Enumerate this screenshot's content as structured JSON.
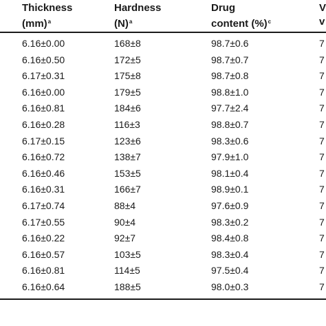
{
  "table": {
    "headers": [
      {
        "line1": "Thickness",
        "line2": "(mm)",
        "note": "a"
      },
      {
        "line1": "Hardness",
        "line2": "(N)",
        "note": "a"
      },
      {
        "line1": "Drug",
        "line2": "content (%)",
        "note": "c"
      },
      {
        "line1": "V",
        "line2": "v",
        "note": ""
      }
    ],
    "rows": [
      [
        "6.16±0.00",
        "168±8",
        "98.7±0.6",
        "7"
      ],
      [
        "6.16±0.50",
        "172±5",
        "98.7±0.7",
        "7"
      ],
      [
        "6.17±0.31",
        "175±8",
        "98.7±0.8",
        "7"
      ],
      [
        "6.16±0.00",
        "179±5",
        "98.8±1.0",
        "7"
      ],
      [
        "6.16±0.81",
        "184±6",
        "97.7±2.4",
        "7"
      ],
      [
        "6.16±0.28",
        "116±3",
        "98.8±0.7",
        "7"
      ],
      [
        "6.17±0.15",
        "123±6",
        "98.3±0.6",
        "7"
      ],
      [
        "6.16±0.72",
        "138±7",
        "97.9±1.0",
        "7"
      ],
      [
        "6.16±0.46",
        "153±5",
        "98.1±0.4",
        "7"
      ],
      [
        "6.16±0.31",
        "166±7",
        "98.9±0.1",
        "7"
      ],
      [
        "6.17±0.74",
        "88±4",
        "97.6±0.9",
        "7"
      ],
      [
        "6.17±0.55",
        "90±4",
        "98.3±0.2",
        "7"
      ],
      [
        "6.16±0.22",
        "92±7",
        "98.4±0.8",
        "7"
      ],
      [
        "6.16±0.57",
        "103±5",
        "98.3±0.4",
        "7"
      ],
      [
        "6.16±0.81",
        "114±5",
        "97.5±0.4",
        "7"
      ],
      [
        "6.16±0.64",
        "188±5",
        "98.0±0.3",
        "7"
      ]
    ]
  }
}
